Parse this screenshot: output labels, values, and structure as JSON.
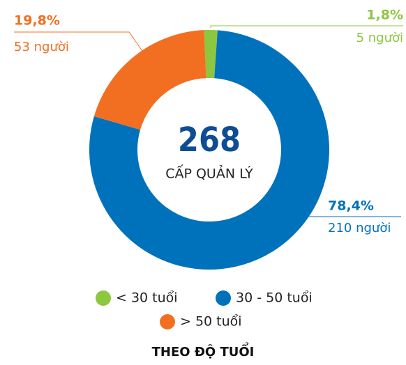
{
  "chart_data": {
    "type": "pie",
    "categories": [
      "< 30 tuổi",
      "30 - 50 tuổi",
      "> 50 tuổi"
    ],
    "values": [
      1.8,
      78.4,
      19.8
    ],
    "value_labels": [
      "1,8%",
      "78,4%",
      "19,8%"
    ],
    "count_labels": [
      "5 người",
      "210 người",
      "53 người"
    ],
    "colors": [
      "#8dc63f",
      "#0072bc",
      "#f26f21"
    ],
    "center_value": "268",
    "center_label": "CẤP QUẢN LÝ",
    "title": "THEO ĐỘ TUỔI"
  }
}
